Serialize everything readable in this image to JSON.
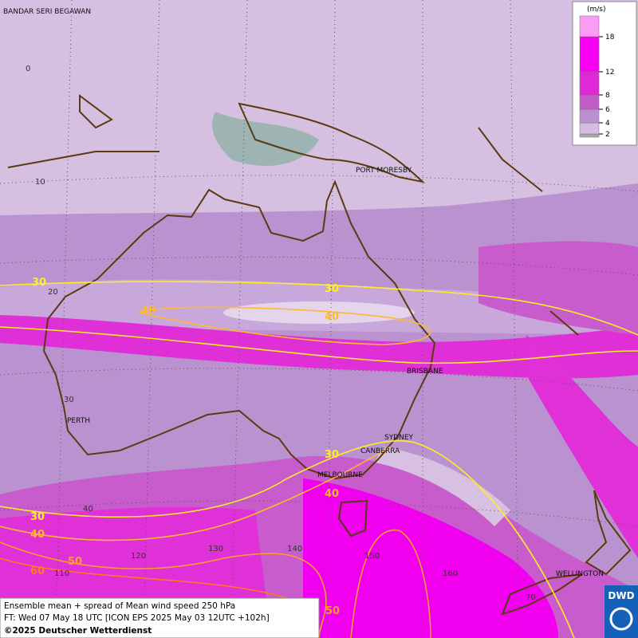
{
  "map": {
    "title": "Ensemble mean + spread of Mean wind speed 250 hPa",
    "forecast_time": "FT: Wed 07 May 18 UTC [ICON EPS 2025 May 03 12UTC +102h]",
    "copyright": "©2025 Deutscher Wetterdienst",
    "logo": "DWD",
    "cities": [
      "BANDAR SERI BEGAWAN",
      "PORT MORESBY",
      "BRISBANE",
      "PERTH",
      "SYDNEY",
      "CANBERRA",
      "MELBOURNE",
      "WELLINGTON"
    ],
    "latitude_labels": [
      "0",
      "10",
      "20",
      "30",
      "40",
      "70"
    ],
    "longitude_labels": [
      "110",
      "120",
      "130",
      "140",
      "150",
      "160"
    ],
    "contour_labels": [
      "30",
      "40",
      "30",
      "40",
      "30",
      "40",
      "30",
      "40",
      "50",
      "60",
      "50"
    ]
  },
  "legend": {
    "unit": "(m/s)",
    "levels": [
      2,
      4,
      6,
      8,
      12,
      18
    ],
    "colors": [
      "#a8a8a8",
      "#d4bce2",
      "#ba90d0",
      "#c45cc8",
      "#e028d8",
      "#f500f0",
      "#fa9cf4"
    ]
  }
}
